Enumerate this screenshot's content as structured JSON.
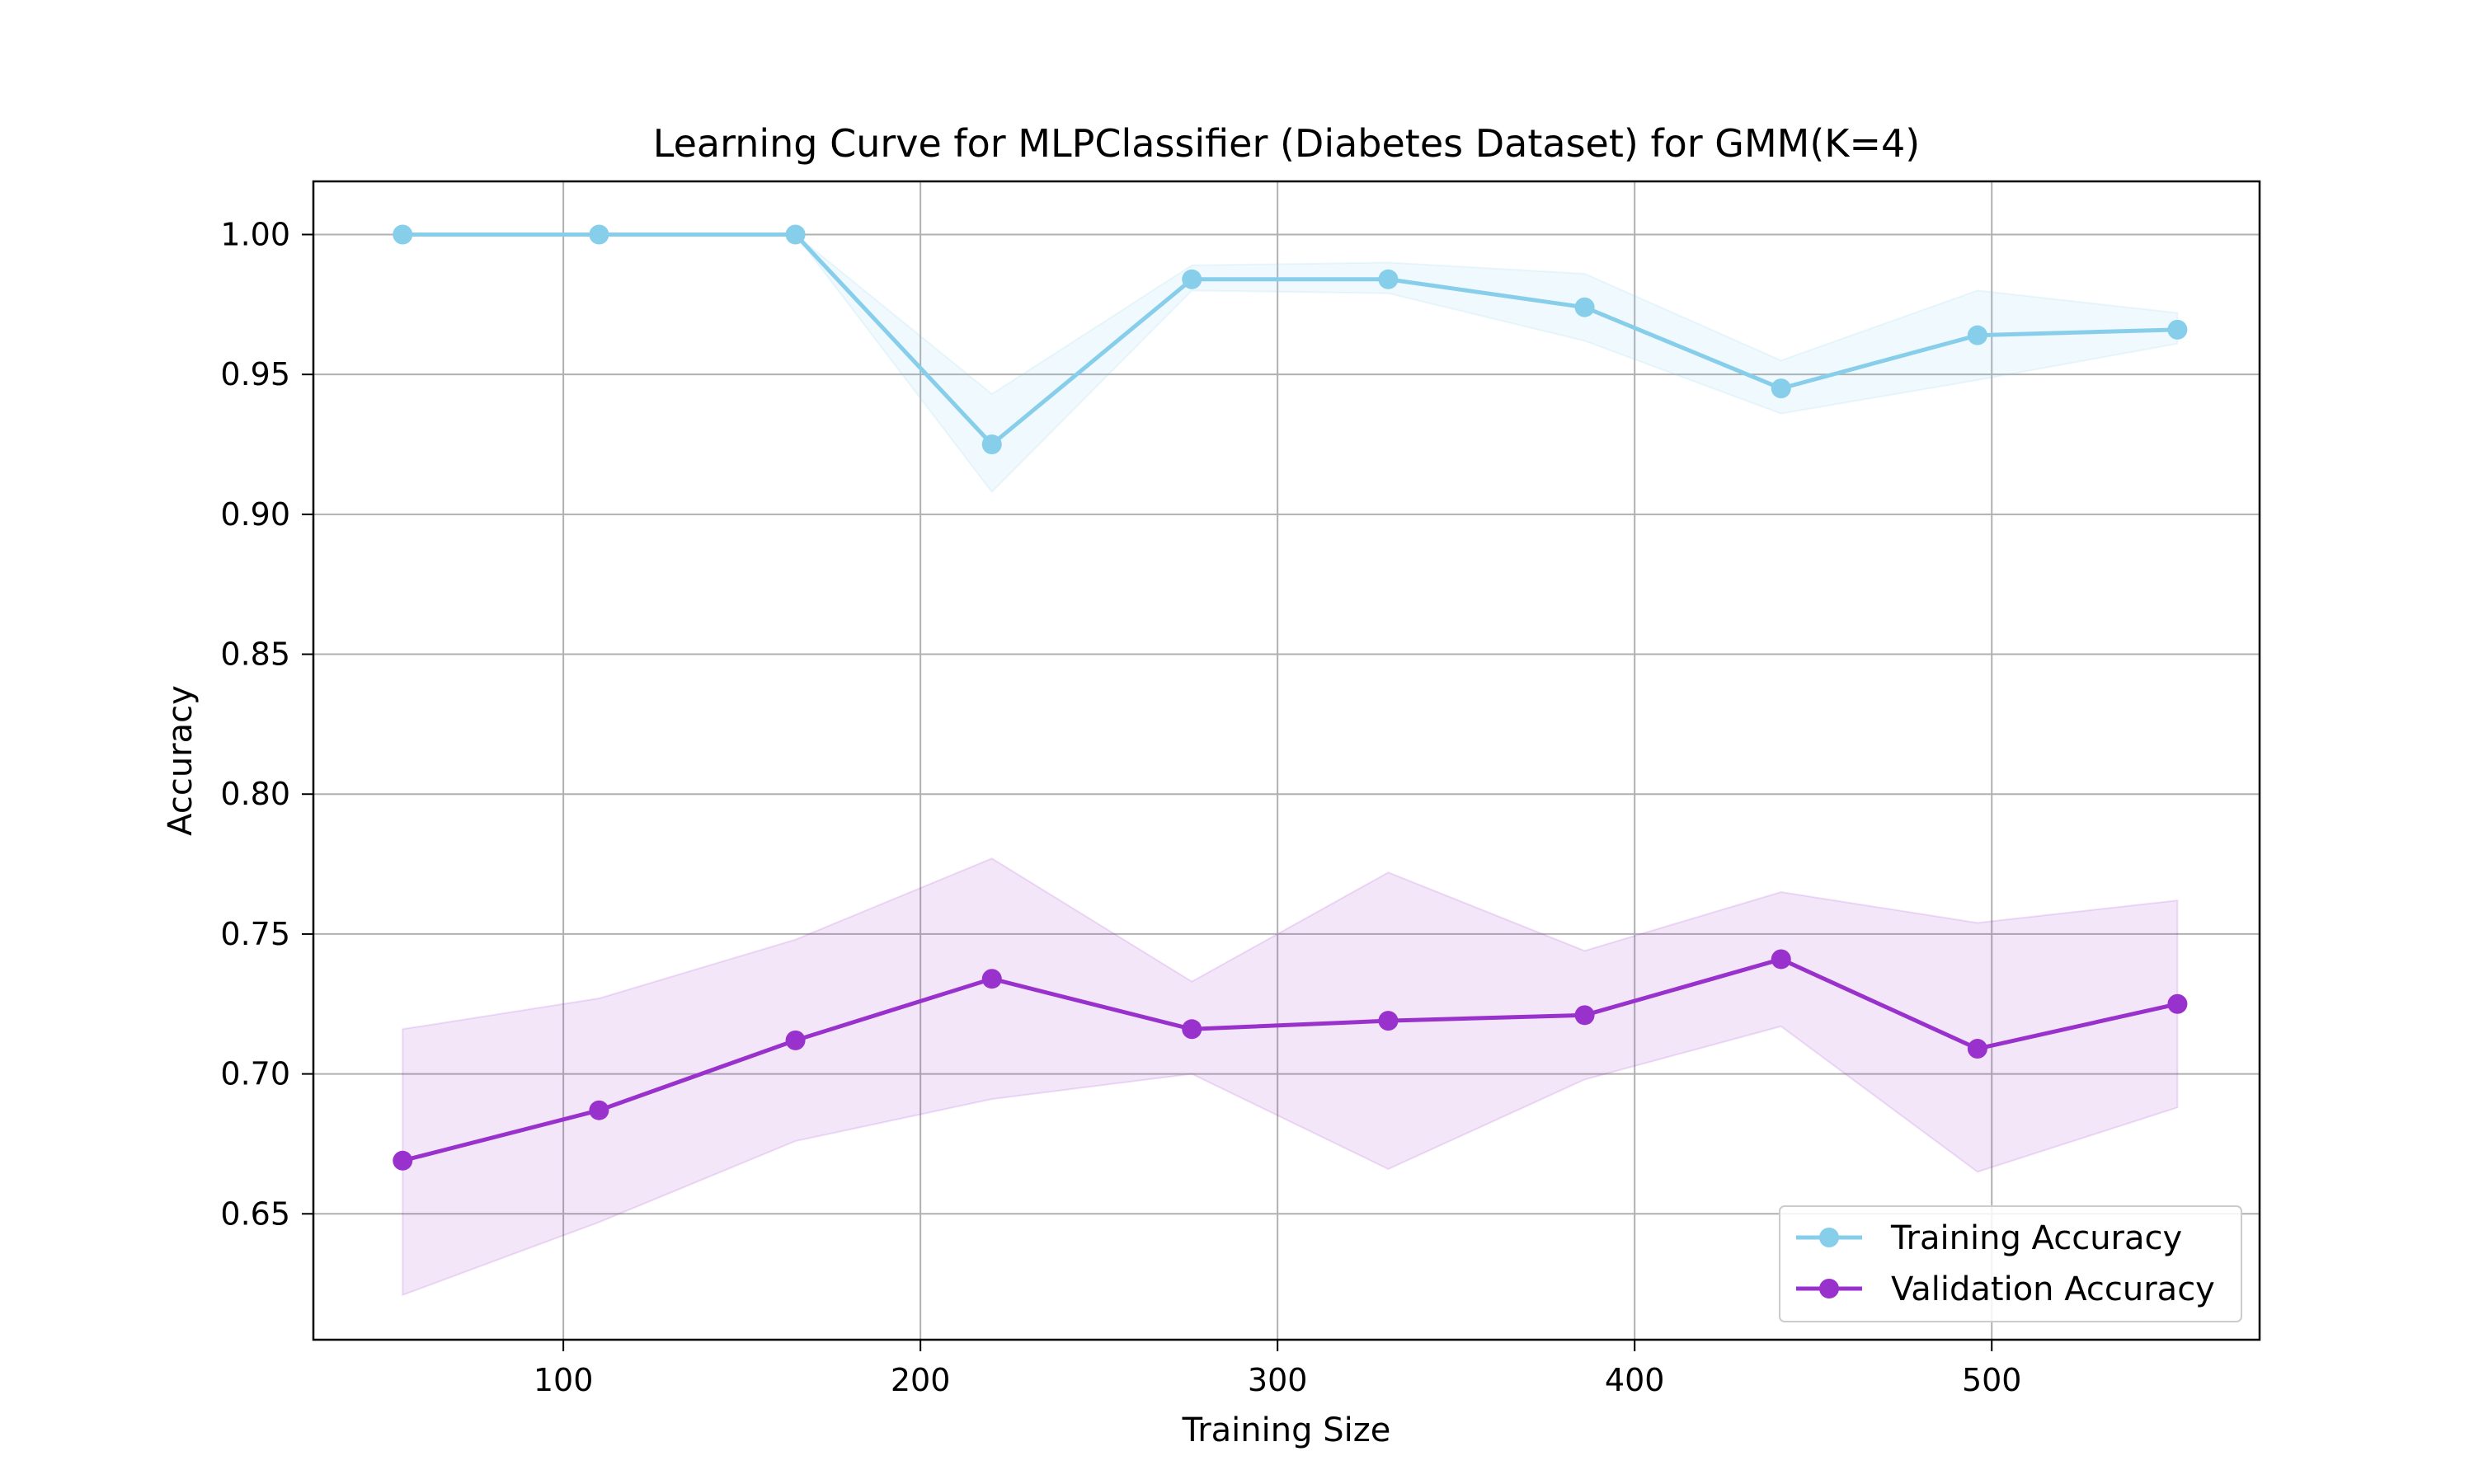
{
  "chart_data": {
    "type": "line",
    "title": "Learning Curve for MLPClassifier (Diabetes Dataset) for GMM(K=4)",
    "xlabel": "Training Size",
    "ylabel": "Accuracy",
    "xlim": [
      30,
      575
    ],
    "ylim": [
      0.605,
      1.019
    ],
    "xticks": [
      100,
      200,
      300,
      400,
      500
    ],
    "yticks": [
      0.65,
      0.7,
      0.75,
      0.8,
      0.85,
      0.9,
      0.95,
      1.0
    ],
    "ytick_labels": [
      "0.65",
      "0.70",
      "0.75",
      "0.80",
      "0.85",
      "0.90",
      "0.95",
      "1.00"
    ],
    "grid": true,
    "legend_position": "lower-right",
    "x": [
      55,
      110,
      165,
      220,
      276,
      331,
      386,
      441,
      496,
      552
    ],
    "series": [
      {
        "name": "Training Accuracy",
        "color": "#87CEEB",
        "values": [
          1.0,
          1.0,
          1.0,
          0.925,
          0.984,
          0.984,
          0.974,
          0.945,
          0.964,
          0.966
        ],
        "lower": [
          1.0,
          1.0,
          1.0,
          0.908,
          0.98,
          0.979,
          0.962,
          0.936,
          0.948,
          0.961
        ],
        "upper": [
          1.0,
          1.0,
          1.0,
          0.943,
          0.989,
          0.99,
          0.986,
          0.955,
          0.98,
          0.972
        ]
      },
      {
        "name": "Validation Accuracy",
        "color": "#9932CC",
        "values": [
          0.669,
          0.687,
          0.712,
          0.734,
          0.716,
          0.719,
          0.721,
          0.741,
          0.709,
          0.725
        ],
        "lower": [
          0.621,
          0.647,
          0.676,
          0.691,
          0.7,
          0.666,
          0.698,
          0.717,
          0.665,
          0.688
        ],
        "upper": [
          0.716,
          0.727,
          0.748,
          0.777,
          0.733,
          0.772,
          0.744,
          0.765,
          0.754,
          0.762
        ]
      }
    ]
  }
}
